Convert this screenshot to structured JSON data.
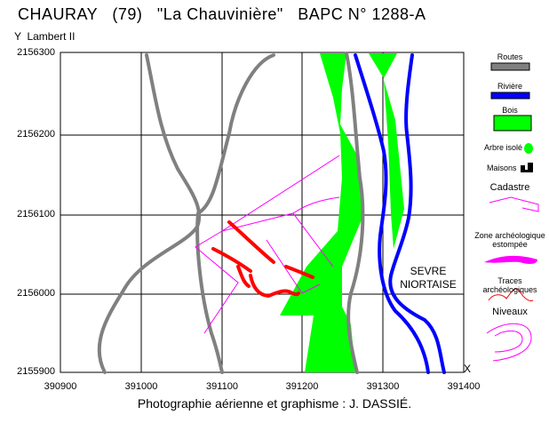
{
  "header": {
    "title": "CHAURAY   (79)   \"La Chauvinière\"   BAPC N° 1288-A",
    "projection": "Y  Lambert II"
  },
  "axes": {
    "y_ticks": [
      "2156300",
      "2156200",
      "2156100",
      "2156000",
      "2155900"
    ],
    "x_ticks": [
      "390900",
      "391000",
      "391100",
      "391200",
      "391300",
      "391400"
    ],
    "x_axis_symbol": "X"
  },
  "map": {
    "water_label_line1": "SEVRE",
    "water_label_line2": "NIORTAISE"
  },
  "legend": {
    "items": [
      {
        "label": "Routes",
        "color": "#808080"
      },
      {
        "label": "Rivière",
        "color": "#0000ff"
      },
      {
        "label": "Bois",
        "color": "#00ff00"
      },
      {
        "label": "Arbre isolé",
        "color": "#00ff00"
      },
      {
        "label": "Maisons",
        "color": "#000000"
      },
      {
        "label": "Cadastre",
        "color": "#ff00ff"
      },
      {
        "label": "Zone archéologique estompée",
        "color": "#ff00ff"
      },
      {
        "label": "Traces archéologiques",
        "color": "#ff0000"
      },
      {
        "label": "Niveaux",
        "color": "#ff00ff"
      }
    ]
  },
  "footer": {
    "credit": "Photographie aérienne et graphisme : J. DASSIÉ."
  }
}
